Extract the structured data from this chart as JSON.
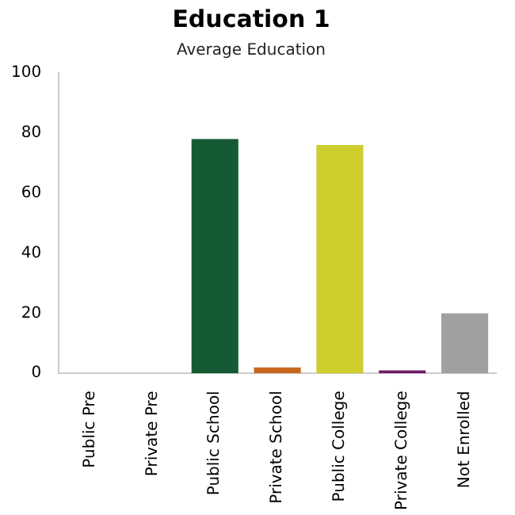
{
  "chart_data": {
    "type": "bar",
    "title": "Education 1",
    "subtitle": "Average Education",
    "categories": [
      "Public Pre",
      "Private Pre",
      "Public School",
      "Private School",
      "Public College",
      "Private College",
      "Not Enrolled"
    ],
    "values": [
      0,
      0,
      78,
      2,
      76,
      1,
      20
    ],
    "colors": [
      "#1fa9c6",
      "#7a1010",
      "#155a32",
      "#c8661e",
      "#cdcd2e",
      "#701a66",
      "#a0a0a0"
    ],
    "ylim": [
      0,
      100
    ],
    "yticks": [
      0,
      20,
      40,
      60,
      80,
      100
    ],
    "grid": false,
    "legend": false
  }
}
